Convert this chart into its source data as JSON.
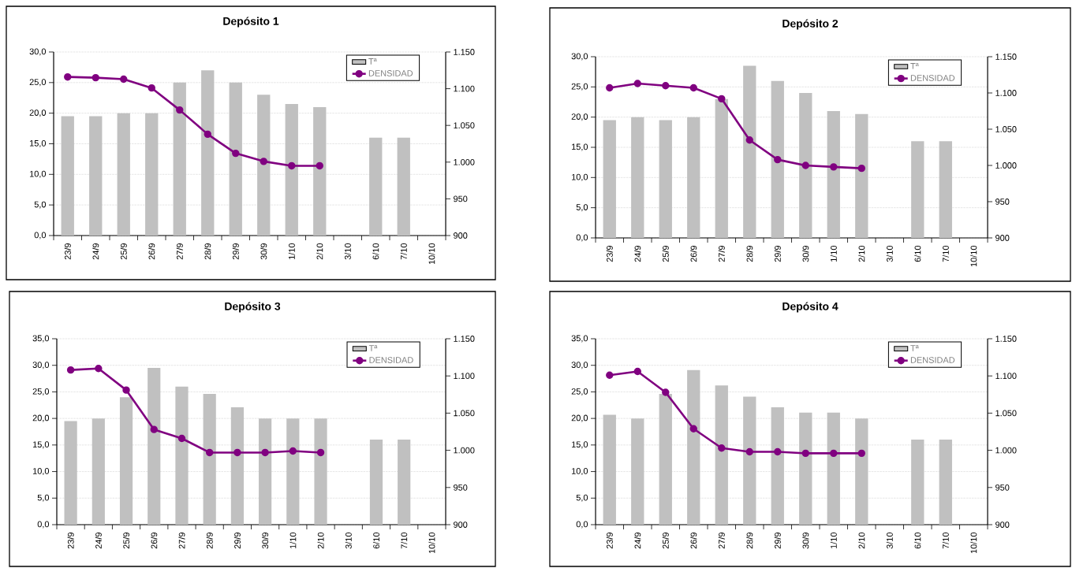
{
  "chart_data": [
    {
      "type": "bar",
      "title": "Depósito 1",
      "categories": [
        "23/9",
        "24/9",
        "25/9",
        "26/9",
        "27/9",
        "28/9",
        "29/9",
        "30/9",
        "1/10",
        "2/10",
        "3/10",
        "6/10",
        "7/10",
        "10/10"
      ],
      "series": [
        {
          "name": "Tª",
          "color": "#c0c0c0",
          "values": [
            19.5,
            19.5,
            20,
            20,
            25,
            27,
            25,
            23,
            21.5,
            21,
            null,
            16,
            16,
            null
          ]
        },
        {
          "name": "DENSIDAD",
          "type": "line",
          "axis": "y2",
          "color": "#800080",
          "values": [
            1116,
            1115,
            1113,
            1101,
            1071,
            1038,
            1012,
            1001,
            995,
            995,
            null,
            null,
            null,
            null
          ]
        }
      ],
      "ylim": [
        0,
        30
      ],
      "yticks": [
        {
          "value": 0,
          "label": "0,0"
        },
        {
          "value": 5,
          "label": "5,0"
        },
        {
          "value": 10,
          "label": "10,0"
        },
        {
          "value": 15,
          "label": "15,0"
        },
        {
          "value": 20,
          "label": "20,0"
        },
        {
          "value": 25,
          "label": "25,0"
        },
        {
          "value": 30,
          "label": "30,0"
        }
      ],
      "y2lim": [
        900,
        1150
      ],
      "y2ticks": [
        900,
        950,
        {
          "value": 1000,
          "label": "1.000"
        },
        {
          "value": 1050,
          "label": "1.050"
        },
        {
          "value": 1100,
          "label": "1.100"
        },
        {
          "value": 1150,
          "label": "1.150"
        }
      ],
      "grid": "y",
      "legend": "top right",
      "marker": "circle"
    },
    {
      "type": "bar",
      "title": "Depósito 2",
      "categories": [
        "23/9",
        "24/9",
        "25/9",
        "26/9",
        "27/9",
        "28/9",
        "29/9",
        "30/9",
        "1/10",
        "2/10",
        "3/10",
        "6/10",
        "7/10",
        "10/10"
      ],
      "series": [
        {
          "name": "Tª",
          "color": "#c0c0c0",
          "values": [
            19.5,
            20,
            19.5,
            20,
            23,
            28.5,
            26,
            24,
            21,
            20.5,
            null,
            16,
            16,
            null
          ]
        },
        {
          "name": "DENSIDAD",
          "type": "line",
          "axis": "y2",
          "color": "#800080",
          "values": [
            1107,
            1113,
            1110,
            1107,
            1092,
            1035,
            1008,
            1000,
            998,
            996,
            null,
            null,
            null,
            null
          ]
        }
      ],
      "ylim": [
        0,
        30
      ],
      "yticks": [
        {
          "value": 0,
          "label": "0,0"
        },
        {
          "value": 5,
          "label": "5,0"
        },
        {
          "value": 10,
          "label": "10,0"
        },
        {
          "value": 15,
          "label": "15,0"
        },
        {
          "value": 20,
          "label": "20,0"
        },
        {
          "value": 25,
          "label": "25,0"
        },
        {
          "value": 30,
          "label": "30,0"
        }
      ],
      "y2lim": [
        900,
        1150
      ],
      "y2ticks": [
        900,
        950,
        {
          "value": 1000,
          "label": "1.000"
        },
        {
          "value": 1050,
          "label": "1.050"
        },
        {
          "value": 1100,
          "label": "1.100"
        },
        {
          "value": 1150,
          "label": "1.150"
        }
      ],
      "grid": "y",
      "legend": "top right",
      "marker": "circle"
    },
    {
      "type": "bar",
      "title": "Depósito 3",
      "categories": [
        "23/9",
        "24/9",
        "25/9",
        "26/9",
        "27/9",
        "28/9",
        "29/9",
        "30/9",
        "1/10",
        "2/10",
        "3/10",
        "6/10",
        "7/10",
        "10/10"
      ],
      "series": [
        {
          "name": "Tª",
          "color": "#c0c0c0",
          "values": [
            19.5,
            20,
            24,
            29.5,
            26,
            24.6,
            22.1,
            20,
            20,
            20,
            null,
            16,
            16,
            null
          ]
        },
        {
          "name": "DENSIDAD",
          "type": "line",
          "axis": "y2",
          "color": "#800080",
          "values": [
            1108,
            1110,
            1081,
            1028,
            1016,
            997,
            997,
            997,
            999,
            997,
            null,
            null,
            null,
            null
          ]
        }
      ],
      "ylim": [
        0,
        35
      ],
      "yticks": [
        {
          "value": 0,
          "label": "0,0"
        },
        {
          "value": 5,
          "label": "5,0"
        },
        {
          "value": 10,
          "label": "10,0"
        },
        {
          "value": 15,
          "label": "15,0"
        },
        {
          "value": 20,
          "label": "20,0"
        },
        {
          "value": 25,
          "label": "25,0"
        },
        {
          "value": 30,
          "label": "30,0"
        },
        {
          "value": 35,
          "label": "35,0"
        }
      ],
      "y2lim": [
        900,
        1150
      ],
      "y2ticks": [
        900,
        950,
        {
          "value": 1000,
          "label": "1.000"
        },
        {
          "value": 1050,
          "label": "1.050"
        },
        {
          "value": 1100,
          "label": "1.100"
        },
        {
          "value": 1150,
          "label": "1.150"
        }
      ],
      "grid": "y",
      "legend": "top right",
      "marker": "circle"
    },
    {
      "type": "bar",
      "title": "Depósito 4",
      "categories": [
        "23/9",
        "24/9",
        "25/9",
        "26/9",
        "27/9",
        "28/9",
        "29/9",
        "30/9",
        "1/10",
        "2/10",
        "3/10",
        "6/10",
        "7/10",
        "10/10"
      ],
      "series": [
        {
          "name": "Tª",
          "color": "#c0c0c0",
          "values": [
            20.7,
            20,
            24.6,
            29.1,
            26.2,
            24.1,
            22.1,
            21.1,
            21.1,
            20,
            null,
            16,
            16,
            null
          ]
        },
        {
          "name": "DENSIDAD",
          "type": "line",
          "axis": "y2",
          "color": "#800080",
          "values": [
            1101,
            1106,
            1078,
            1029,
            1003,
            998,
            998,
            996,
            996,
            996,
            null,
            null,
            null,
            null
          ]
        }
      ],
      "ylim": [
        0,
        35
      ],
      "yticks": [
        {
          "value": 0,
          "label": "0,0"
        },
        {
          "value": 5,
          "label": "5,0"
        },
        {
          "value": 10,
          "label": "10,0"
        },
        {
          "value": 15,
          "label": "15,0"
        },
        {
          "value": 20,
          "label": "20,0"
        },
        {
          "value": 25,
          "label": "25,0"
        },
        {
          "value": 30,
          "label": "30,0"
        },
        {
          "value": 35,
          "label": "35,0"
        }
      ],
      "y2lim": [
        900,
        1150
      ],
      "y2ticks": [
        900,
        950,
        {
          "value": 1000,
          "label": "1.000"
        },
        {
          "value": 1050,
          "label": "1.050"
        },
        {
          "value": 1100,
          "label": "1.100"
        },
        {
          "value": 1150,
          "label": "1.150"
        }
      ],
      "grid": "y",
      "legend": "top right",
      "marker": "circle"
    }
  ]
}
